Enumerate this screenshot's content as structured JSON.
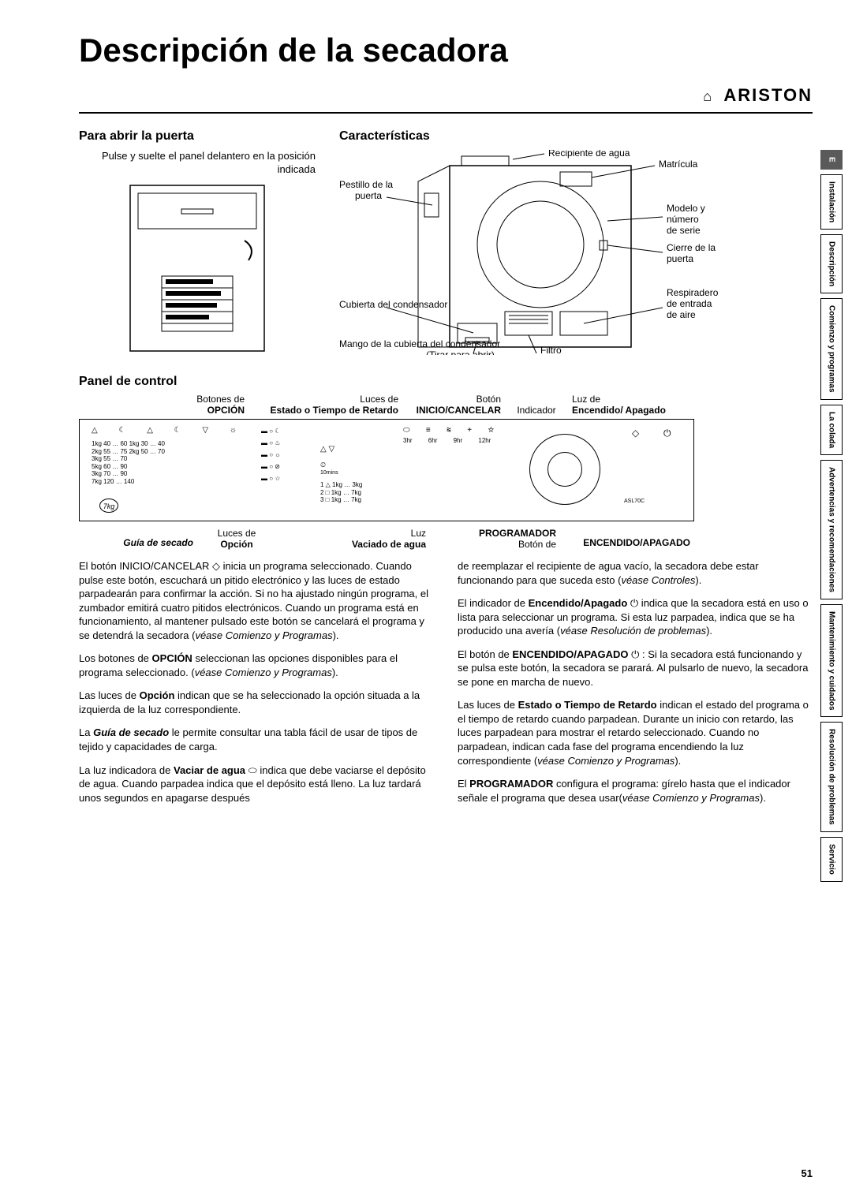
{
  "page": {
    "title": "Descripción de la secadora",
    "brand": "ARISTON",
    "page_number": "51"
  },
  "door": {
    "heading": "Para abrir la puerta",
    "instruction": "Pulse y suelte el panel delantero en la posición indicada"
  },
  "features": {
    "heading": "Características",
    "labels": {
      "water_container": "Recipiente de agua",
      "rating_plate": "Matrícula",
      "door_latch": "Pestillo de la puerta",
      "model_serial": "Modelo y número de serie",
      "door_catch": "Cierre de la puerta",
      "condenser_cover": "Cubierta del condensador",
      "air_vent": "Respiradero de entrada de aire",
      "condenser_handle": "Mango de la cubierta del condensador (Tirar para abrir)",
      "filter": "Filtro"
    }
  },
  "panel": {
    "heading": "Panel de control",
    "top": {
      "option_buttons": "Botones de",
      "option_bold": "OPCIÓN",
      "delay_lights": "Luces de",
      "delay_bold": "Estado o Tiempo de Retardo",
      "start_button": "Botón",
      "start_bold": "INICIO/CANCELAR",
      "indicator": "Indicador",
      "onoff_light": "Luz de",
      "onoff_bold": "Encendido/ Apagado"
    },
    "bot": {
      "guide": "Guía de secado",
      "option_lights": "Luces de",
      "option_bold": "Opción",
      "empty_light": "Luz",
      "empty_bold": "Vaciado de agua",
      "programmer": "PROGRAMADOR",
      "onoff_btn": "Botón de",
      "onoff_bold": "ENCENDIDO/APAGADO"
    },
    "inside": {
      "guide_rows": [
        "1kg 40 … 60   1kg 30 … 40",
        "2kg 55 … 75   2kg 50 … 70",
        "            3kg 55 … 70",
        "            5kg 60 … 90",
        "3kg 70 … 90",
        "            7kg 120 … 140"
      ],
      "timed": [
        "3hr",
        "6hr",
        "9hr",
        "12hr"
      ],
      "timed_small": "10mins",
      "prog_rows": [
        "1 △ 1kg … 3kg",
        "2 □ 1kg … 7kg",
        "3 □ 1kg … 7kg"
      ],
      "model": "ASL70C"
    }
  },
  "body": {
    "left": [
      "El botón INICIO/CANCELAR ◇ inicia un programa seleccionado. Cuando pulse este botón, escuchará un pitido electrónico y las luces de estado parpadearán para confirmar la acción. Si no ha ajustado ningún programa, el zumbador emitirá cuatro pitidos electrónicos. Cuando un programa está en funcionamiento, al mantener pulsado este botón se cancelará el programa y se detendrá la secadora (<em>véase Comienzo y Programas</em>).",
      "Los botones de <b>OPCIÓN</b> seleccionan las opciones disponibles para el programa seleccionado. (<em>véase Comienzo y Programas</em>).",
      "Las luces de <b>Opción</b> indican que se ha seleccionado la opción situada a la izquierda de la luz correspondiente.",
      "La <b><em>Guía de secado</em></b> le permite consultar una tabla fácil de usar de tipos de tejido y capacidades de carga.",
      "La luz indicadora de <b>Vaciar de agua</b> ⬭ indica que debe vaciarse el depósito de agua. Cuando parpadea indica que el depósito está lleno. La luz tardará unos segundos en apagarse después"
    ],
    "right": [
      "de reemplazar el recipiente de agua vacío, la secadora debe estar funcionando para que suceda esto (<em>véase Controles</em>).",
      "El indicador de <b>Encendido/Apagado</b> ⏻ indica que la secadora está en uso o lista para seleccionar un programa. Si esta luz parpadea, indica que se ha producido una avería (<em>véase Resolución de problemas</em>).",
      "El botón de <b>ENCENDIDO/APAGADO</b> ⏻ : Si la secadora está funcionando y se pulsa este botón, la secadora se parará. Al pulsarlo de nuevo, la secadora se pone en marcha de nuevo.",
      "Las luces de <b>Estado o Tiempo de Retardo</b> indican el estado del programa o el tiempo de retardo cuando parpadean. Durante un inicio con retardo, las luces parpadean para mostrar el retardo seleccionado. Cuando no parpadean, indican cada fase del programa encendiendo la luz correspondiente (<em>véase Comienzo y Programas</em>).",
      "El <b>PROGRAMADOR</b> configura el programa: gírelo hasta que el indicador señale el programa que desea usar(<em>véase Comienzo y Programas</em>)."
    ]
  },
  "sidebar": [
    {
      "label": "E",
      "active": true
    },
    {
      "label": "Instalación",
      "active": false
    },
    {
      "label": "Descripción",
      "active": false
    },
    {
      "label": "Comienzo y programas",
      "active": false
    },
    {
      "label": "La colada",
      "active": false
    },
    {
      "label": "Advertencias y recomendaciones",
      "active": false
    },
    {
      "label": "Mantenimiento y cuidados",
      "active": false
    },
    {
      "label": "Resolución de problemas",
      "active": false
    },
    {
      "label": "Servicio",
      "active": false
    }
  ]
}
